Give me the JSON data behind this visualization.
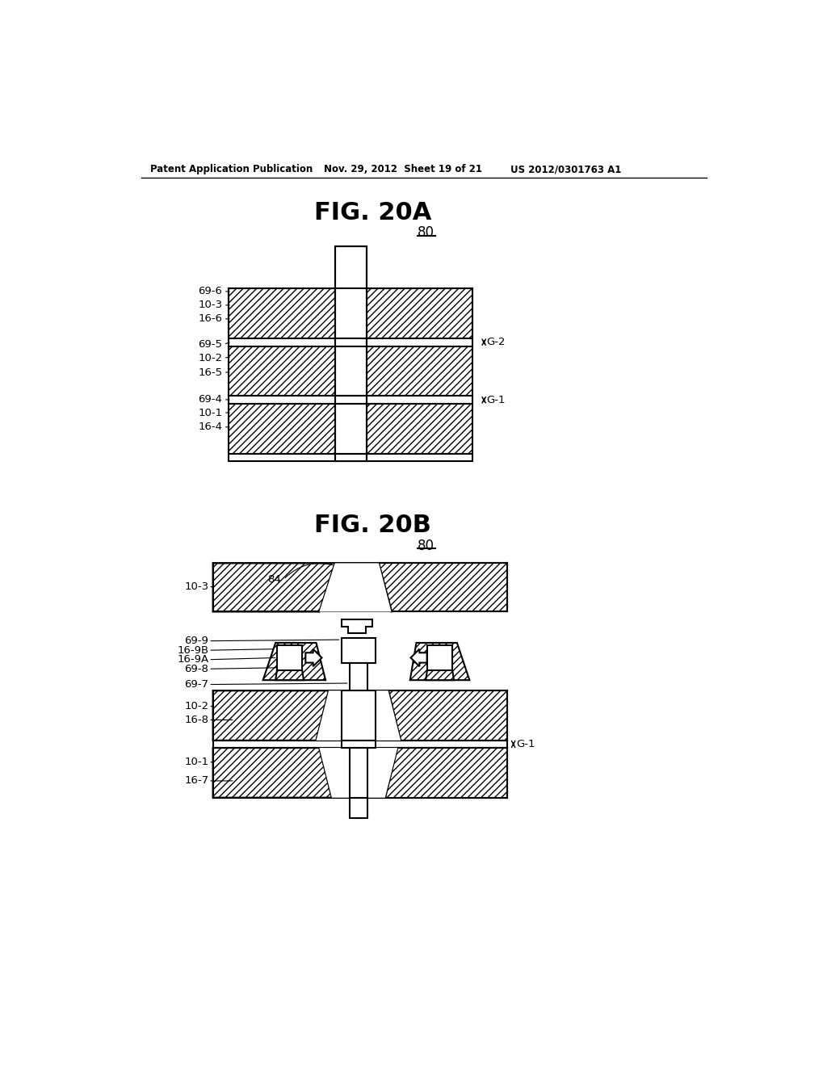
{
  "bg_color": "#ffffff",
  "header_left": "Patent Application Publication",
  "header_mid": "Nov. 29, 2012  Sheet 19 of 21",
  "header_right": "US 2012/0301763 A1",
  "fig20a_title": "FIG. 20A",
  "fig20b_title": "FIG. 20B",
  "label_80": "80",
  "line_color": "#000000",
  "face_color": "#ffffff"
}
